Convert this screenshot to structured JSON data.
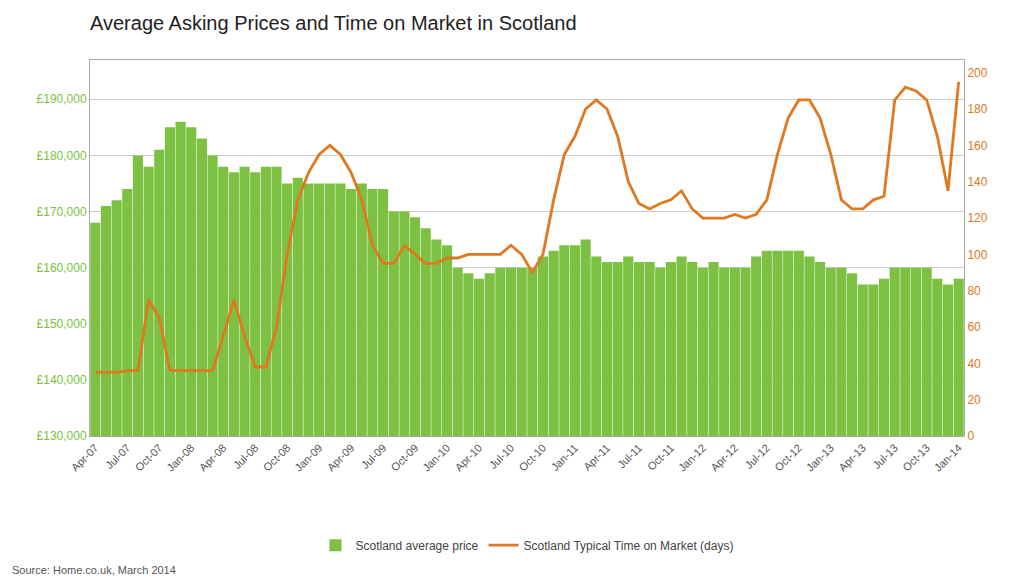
{
  "chart_data": {
    "type": "bar",
    "title": "Average Asking Prices and Time on Market in Scotland",
    "annotations": [
      "Source: Home.co.uk, March 2014"
    ],
    "categories": [
      "Apr-07",
      null,
      null,
      "Jul-07",
      null,
      null,
      "Oct-07",
      null,
      null,
      "Jan-08",
      null,
      null,
      "Apr-08",
      null,
      null,
      "Jul-08",
      null,
      null,
      "Oct-08",
      null,
      null,
      "Jan-09",
      null,
      null,
      "Apr-09",
      null,
      null,
      "Jul-09",
      null,
      null,
      "Oct-09",
      null,
      null,
      "Jan-10",
      null,
      null,
      "Apr-10",
      null,
      null,
      "Jul-10",
      null,
      null,
      "Oct-10",
      null,
      null,
      "Jan-11",
      null,
      null,
      "Apr-11",
      null,
      null,
      "Jul-11",
      null,
      null,
      "Oct-11",
      null,
      null,
      "Jan-12",
      null,
      null,
      "Apr-12",
      null,
      null,
      "Jul-12",
      null,
      null,
      "Oct-12",
      null,
      null,
      "Jan-13",
      null,
      null,
      "Apr-13",
      null,
      null,
      "Jul-13",
      null,
      null,
      "Oct-13",
      null,
      null,
      "Jan-14"
    ],
    "series": [
      {
        "name": "Scotland average price",
        "type": "bar",
        "color": "#7DC142",
        "values": [
          168000,
          171000,
          172000,
          174000,
          180000,
          178000,
          181000,
          185000,
          186000,
          185000,
          183000,
          180000,
          178000,
          177000,
          178000,
          177000,
          178000,
          178000,
          175000,
          176000,
          175000,
          175000,
          175000,
          175000,
          174000,
          175000,
          174000,
          174000,
          170000,
          170000,
          169000,
          167000,
          165000,
          164000,
          160000,
          159000,
          158000,
          159000,
          160000,
          160000,
          160000,
          160000,
          162000,
          163000,
          164000,
          164000,
          165000,
          162000,
          161000,
          161000,
          162000,
          161000,
          161000,
          160000,
          161000,
          162000,
          161000,
          160000,
          161000,
          160000,
          160000,
          160000,
          162000,
          163000,
          163000,
          163000,
          163000,
          162000,
          161000,
          160000,
          160000,
          159000,
          157000,
          157000,
          158000,
          160000,
          160000,
          160000,
          160000,
          158000,
          157000,
          158000
        ]
      },
      {
        "name": "Scotland Typical Time on Market (days)",
        "type": "line",
        "color": "#E07820",
        "axis": "y2",
        "values": [
          35,
          35,
          35,
          36,
          36,
          75,
          65,
          36,
          36,
          36,
          36,
          36,
          55,
          75,
          55,
          38,
          38,
          60,
          100,
          130,
          145,
          155,
          160,
          155,
          145,
          130,
          105,
          95,
          95,
          105,
          100,
          95,
          95,
          98,
          98,
          100,
          100,
          100,
          100,
          105,
          100,
          90,
          100,
          130,
          155,
          165,
          180,
          185,
          180,
          165,
          140,
          128,
          125,
          128,
          130,
          135,
          125,
          120,
          120,
          120,
          122,
          120,
          122,
          130,
          155,
          175,
          185,
          185,
          175,
          155,
          130,
          125,
          125,
          130,
          132,
          185,
          192,
          190,
          185,
          165,
          135,
          195
        ]
      }
    ],
    "ylim": [
      130000,
      197000
    ],
    "yticks": [
      {
        "value": 130000,
        "label": "£130,000"
      },
      {
        "value": 140000,
        "label": "£140,000"
      },
      {
        "value": 150000,
        "label": "£150,000"
      },
      {
        "value": 160000,
        "label": "£160,000"
      },
      {
        "value": 170000,
        "label": "£170,000"
      },
      {
        "value": 180000,
        "label": "£180,000"
      },
      {
        "value": 190000,
        "label": "£190,000"
      }
    ],
    "y2lim": [
      0,
      207
    ],
    "y2ticks": [
      0,
      20,
      40,
      60,
      80,
      100,
      120,
      140,
      160,
      180,
      200
    ],
    "grid": true,
    "legend": "bottom"
  }
}
